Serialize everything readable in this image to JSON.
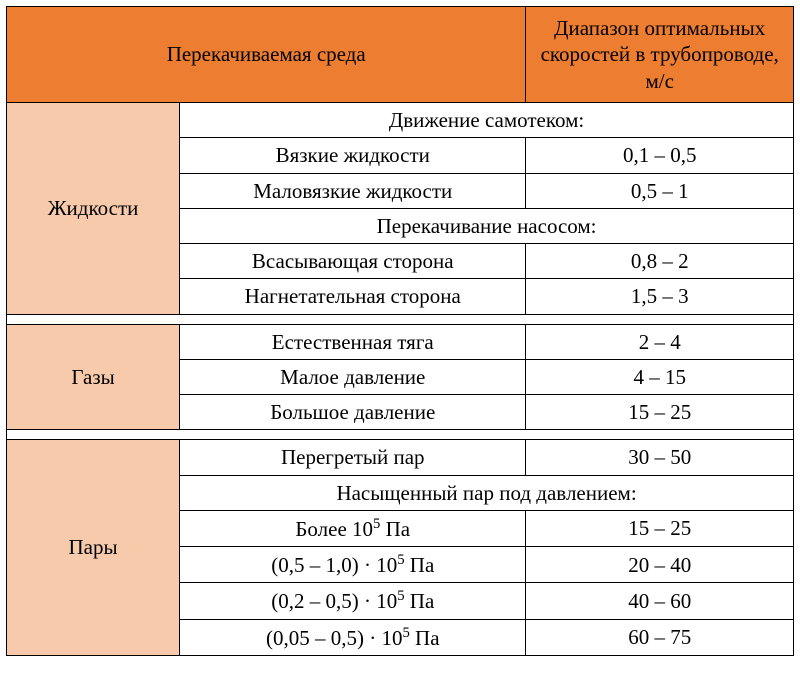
{
  "colors": {
    "header_bg": "#ed7d31",
    "category_bg": "#f7caac",
    "border": "#000000",
    "text": "#000000",
    "page_bg": "#ffffff"
  },
  "font": {
    "family": "Times New Roman",
    "size_pt": 16
  },
  "header": {
    "col1": "Перекачиваемая среда",
    "col2": "Диапазон оптимальных скоростей в трубопроводе, м/с"
  },
  "sections": [
    {
      "category": "Жидкости",
      "rows": [
        {
          "type": "subhead",
          "label": "Движение самотеком:"
        },
        {
          "type": "data",
          "label": "Вязкие жидкости",
          "value": "0,1 – 0,5"
        },
        {
          "type": "data",
          "label": "Маловязкие жидкости",
          "value": "0,5 – 1"
        },
        {
          "type": "subhead",
          "label": "Перекачивание насосом:"
        },
        {
          "type": "data",
          "label": "Всасывающая сторона",
          "value": "0,8 – 2"
        },
        {
          "type": "data",
          "label": "Нагнетательная сторона",
          "value": "1,5 – 3"
        }
      ]
    },
    {
      "category": "Газы",
      "rows": [
        {
          "type": "data",
          "label": "Естественная тяга",
          "value": "2 – 4"
        },
        {
          "type": "data",
          "label": "Малое давление",
          "value": "4 – 15"
        },
        {
          "type": "data",
          "label": "Большое давление",
          "value": "15 – 25"
        }
      ]
    },
    {
      "category": "Пары",
      "rows": [
        {
          "type": "data",
          "label": "Перегретый пар",
          "value": "30 – 50"
        },
        {
          "type": "subhead",
          "label": "Насыщенный пар под давлением:"
        },
        {
          "type": "data",
          "label_html": "Более 10<sup>5</sup> Па",
          "value": "15 – 25"
        },
        {
          "type": "data",
          "label_html": "(0,5 – 1,0) · 10<sup>5</sup> Па",
          "value": "20 – 40"
        },
        {
          "type": "data",
          "label_html": "(0,2 – 0,5) · 10<sup>5</sup> Па",
          "value": "40 – 60"
        },
        {
          "type": "data",
          "label_html": "(0,05 – 0,5) · 10<sup>5</sup> Па",
          "value": "60 – 75"
        }
      ]
    }
  ]
}
